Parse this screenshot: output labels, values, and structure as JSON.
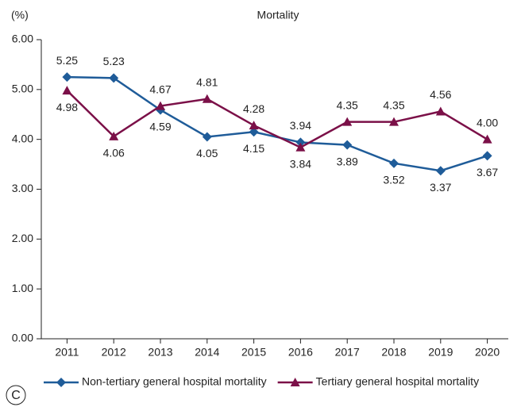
{
  "chart_data": {
    "type": "line",
    "title": "Mortality",
    "y_label": "(%)",
    "panel_label": "C",
    "categories": [
      "2011",
      "2012",
      "2013",
      "2014",
      "2015",
      "2016",
      "2017",
      "2018",
      "2019",
      "2020"
    ],
    "series": [
      {
        "name": "Non-tertiary general hospital mortality",
        "color": "#1f5c99",
        "marker": "diamond",
        "values": [
          5.25,
          5.23,
          4.59,
          4.05,
          4.15,
          3.94,
          3.89,
          3.52,
          3.37,
          3.67
        ]
      },
      {
        "name": "Tertiary general hospital mortality",
        "color": "#7b1048",
        "marker": "triangle",
        "values": [
          4.98,
          4.06,
          4.67,
          4.81,
          4.28,
          3.84,
          4.35,
          4.35,
          4.56,
          4
        ],
        "value_labels": [
          "4.98",
          "4.06",
          "4.67",
          "4.81",
          "4.28",
          "3.84",
          "4.35",
          "4.35",
          "4.56",
          "4.00"
        ]
      }
    ],
    "ylim": [
      0,
      6
    ],
    "yticks": [
      {
        "value": 0,
        "label": "0.00"
      },
      {
        "value": 1,
        "label": "1.00"
      },
      {
        "value": 2,
        "label": "2.00"
      },
      {
        "value": 3,
        "label": "3.00"
      },
      {
        "value": 4,
        "label": "4.00"
      },
      {
        "value": 5,
        "label": "5.00"
      },
      {
        "value": 6,
        "label": "6.00"
      }
    ],
    "legend": "bottom"
  }
}
